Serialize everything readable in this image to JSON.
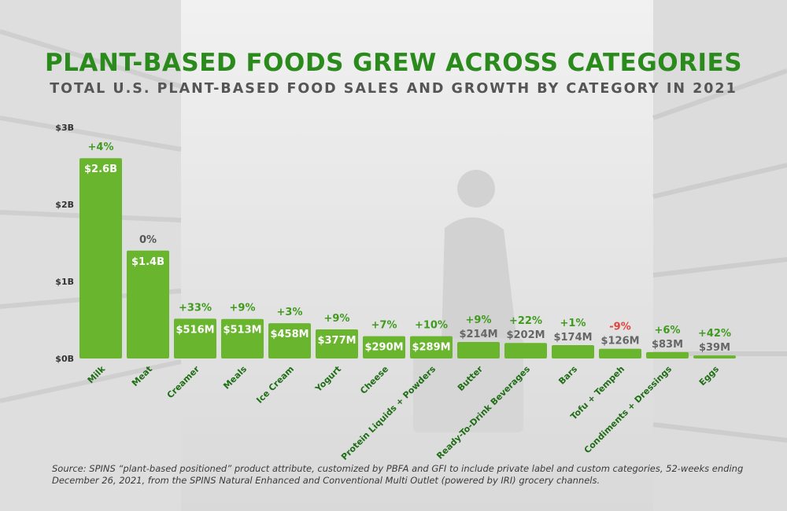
{
  "title": "PLANT-BASED FOODS GREW ACROSS CATEGORIES",
  "subtitle": "TOTAL U.S. PLANT-BASED FOOD SALES AND GROWTH BY CATEGORY IN 2021",
  "source": "Source: SPINS “plant-based positioned” product attribute, customized by PBFA and GFI to include private label and custom categories, 52-weeks ending December 26, 2021, from the SPINS Natural Enhanced and Conventional Multi Outlet (powered by IRI) grocery channels.",
  "colors": {
    "bar": "#6ab52e",
    "bar_light": "#86c057",
    "growth_positive": "#3f9a1e",
    "growth_negative": "#e0443a",
    "title": "#2a8a1c",
    "category_label": "#1f6e16"
  },
  "chart_data": {
    "type": "bar",
    "title": "PLANT-BASED FOODS GREW ACROSS CATEGORIES",
    "subtitle": "TOTAL U.S. PLANT-BASED FOOD SALES AND GROWTH BY CATEGORY IN 2021",
    "categories": [
      "Milk",
      "Meat",
      "Creamer",
      "Meals",
      "Ice Cream",
      "Yogurt",
      "Cheese",
      "Protein Liquids + Powders",
      "Butter",
      "Ready-To-Drink Beverages",
      "Bars",
      "Tofu + Tempeh",
      "Condiments + Dressings",
      "Eggs"
    ],
    "series": [
      {
        "values": [
          2.6,
          1.4,
          0.516,
          0.513,
          0.458,
          0.377,
          0.29,
          0.289,
          0.214,
          0.202,
          0.174,
          0.126,
          0.083,
          0.039
        ],
        "value_labels": [
          "$2.6B",
          "$1.4B",
          "$516M",
          "$513M",
          "$458M",
          "$377M",
          "$290M",
          "$289M",
          "$214M",
          "$202M",
          "$174M",
          "$126M",
          "$83M",
          "$39M"
        ],
        "growth_labels": [
          "+4%",
          "0%",
          "+33%",
          "+9%",
          "+3%",
          "+9%",
          "+7%",
          "+10%",
          "+9%",
          "+22%",
          "+1%",
          "-9%",
          "+6%",
          "+42%"
        ]
      }
    ],
    "y_unit": "billions USD",
    "ylim": [
      0,
      3
    ],
    "yticks": [
      0,
      1,
      2,
      3
    ],
    "ytick_labels": [
      "$0B",
      "$1B",
      "$2B",
      "$3B"
    ],
    "xlabel": "",
    "ylabel": "",
    "grid": false,
    "legend": "none"
  }
}
